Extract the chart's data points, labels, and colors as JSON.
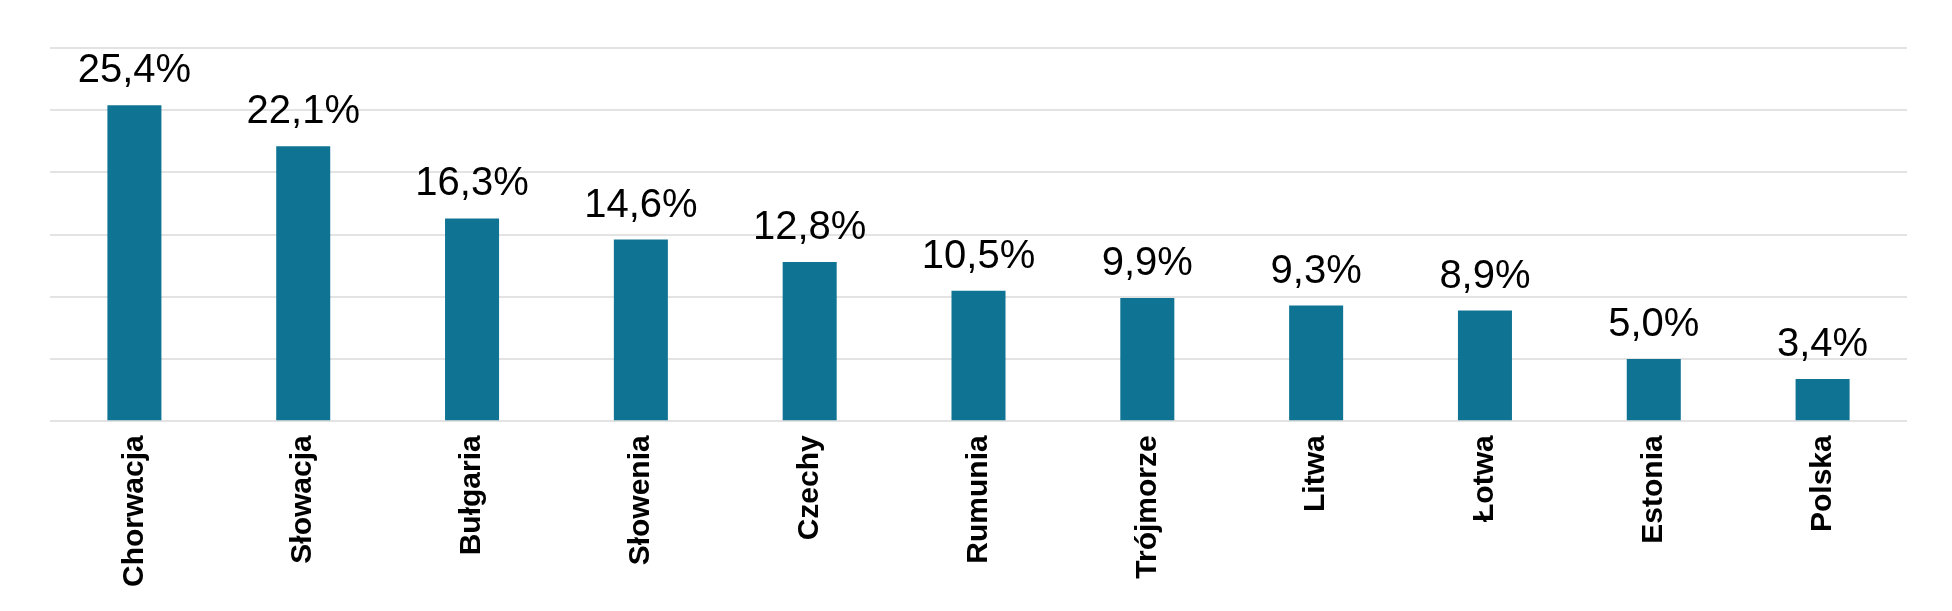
{
  "chart_data": {
    "type": "bar",
    "categories": [
      "Chorwacja",
      "Słowacja",
      "Bułgaria",
      "Słowenia",
      "Czechy",
      "Rumunia",
      "Trójmorze",
      "Litwa",
      "Łotwa",
      "Estonia",
      "Polska"
    ],
    "values": [
      25.4,
      22.1,
      16.3,
      14.6,
      12.8,
      10.5,
      9.9,
      9.3,
      8.9,
      5.0,
      3.4
    ],
    "value_labels": [
      "25,4%",
      "22,1%",
      "16,3%",
      "14,6%",
      "12,8%",
      "10,5%",
      "9,9%",
      "9,3%",
      "8,9%",
      "5,0%",
      "3,4%"
    ],
    "color": "#0f7493",
    "ylim": [
      0,
      30
    ],
    "yticks": [
      {
        "value": 0,
        "label": null
      },
      {
        "value": 5,
        "label": null
      },
      {
        "value": 10,
        "label": null
      },
      {
        "value": 15,
        "label": null
      },
      {
        "value": 20,
        "label": null
      },
      {
        "value": 25,
        "label": null
      },
      {
        "value": 30,
        "label": null
      }
    ],
    "tick_labels": "x",
    "grid": "y"
  }
}
